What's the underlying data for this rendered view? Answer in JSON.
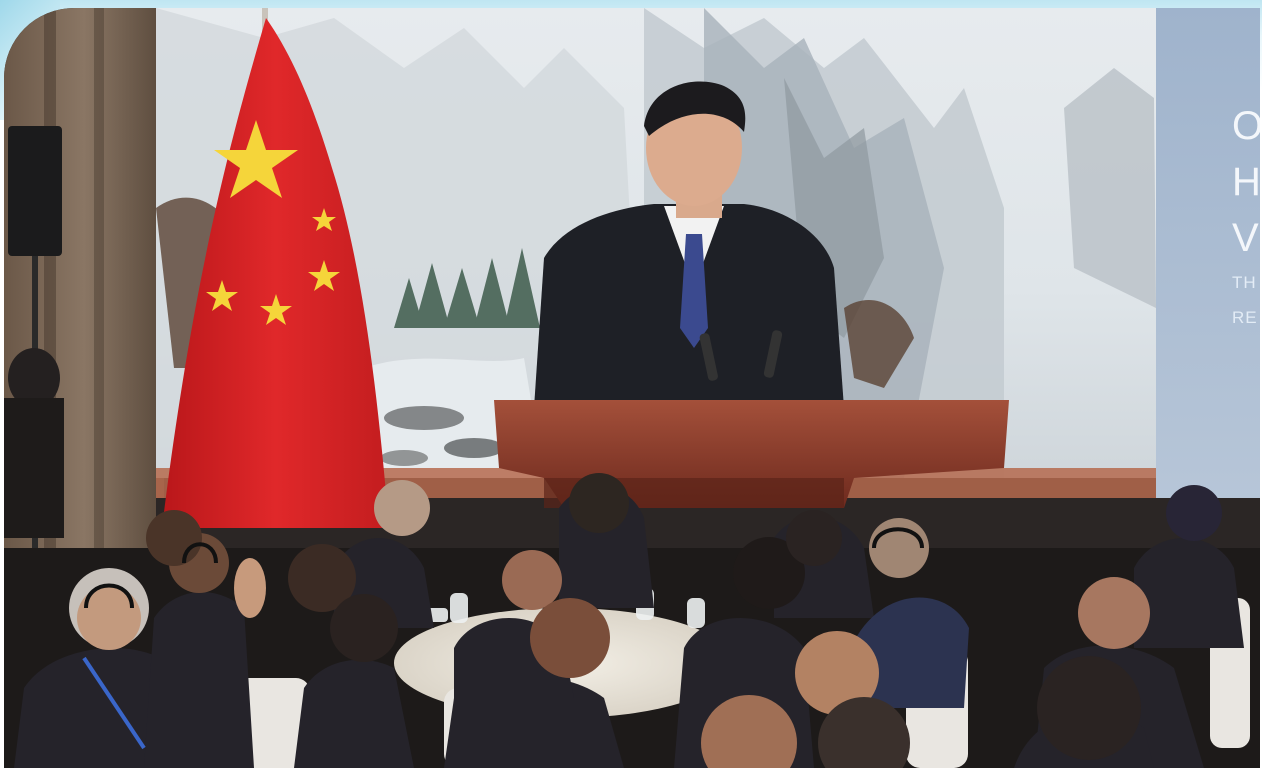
{
  "slide": {
    "line1": "O",
    "line2": "H",
    "line3": "V",
    "line4": "TH",
    "line5": "RE"
  },
  "colors": {
    "flag_red": "#d3201f",
    "flag_star": "#f5d53a",
    "screen_panel": "#a9bbd2",
    "podium": "#8b3a2a",
    "suit": "#1e2026",
    "stage_dark": "#1a1716"
  }
}
